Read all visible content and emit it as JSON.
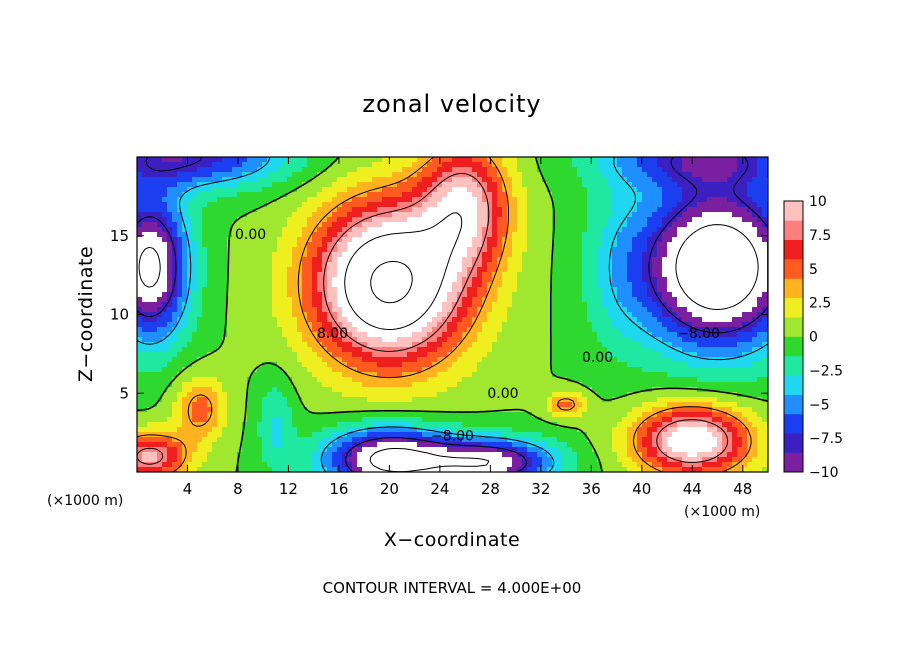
{
  "chart_data": {
    "type": "heatmap",
    "title": "zonal velocity",
    "xlabel": "X−coordinate",
    "ylabel": "Z−coordinate",
    "x_unit": "(×1000 m)",
    "y_unit": "(×1000 m)",
    "xlim": [
      0,
      50
    ],
    "ylim": [
      0,
      20
    ],
    "x_ticks": [
      4,
      8,
      12,
      16,
      20,
      24,
      28,
      32,
      36,
      40,
      44,
      48
    ],
    "x_tick_labels": [
      "4",
      "8",
      "12",
      "16",
      "20",
      "24",
      "28",
      "32",
      "36",
      "40",
      "44",
      "48"
    ],
    "y_ticks": [
      5,
      10,
      15
    ],
    "y_tick_labels": [
      "5",
      "10",
      "15"
    ],
    "colorbar": {
      "min": -10,
      "max": 10,
      "ticks": [
        10,
        7.5,
        5,
        2.5,
        0,
        -2.5,
        -5,
        -7.5,
        -10
      ],
      "tick_labels": [
        "10",
        "7.5",
        "5",
        "2.5",
        "0",
        "−2.5",
        "−5",
        "−7.5",
        "−10"
      ],
      "palette": [
        "#7a1fa0",
        "#3b1fc0",
        "#1b3ff0",
        "#1f8fff",
        "#1fd8f0",
        "#1fe8a0",
        "#2fd82f",
        "#9fe82f",
        "#efef1f",
        "#ffb41f",
        "#ff5a1f",
        "#ef1f1f",
        "#ff7f7f",
        "#ffc0c0"
      ],
      "saturated_color": "#ffffff"
    },
    "contour_interval": 4.0,
    "contour_labels": [
      {
        "text": "0.00",
        "x": 9.0,
        "z": 14.8
      },
      {
        "text": "8.00",
        "x": 15.5,
        "z": 8.5
      },
      {
        "text": "0.00",
        "x": 29.0,
        "z": 4.7
      },
      {
        "text": "0.00",
        "x": 36.5,
        "z": 7.0
      },
      {
        "text": "−8.00",
        "x": 44.5,
        "z": 8.5
      },
      {
        "text": "−8.00",
        "x": 25.0,
        "z": 2.0
      }
    ],
    "field": {
      "background": 0,
      "components": [
        {
          "x": 20,
          "z": 12,
          "sx": 6,
          "sz": 5,
          "a": 17
        },
        {
          "x": 26,
          "z": 17,
          "sx": 3.5,
          "sz": 4,
          "a": 9
        },
        {
          "x": 44,
          "z": 2,
          "sx": 4.5,
          "sz": 2.2,
          "a": 12
        },
        {
          "x": 34,
          "z": 4.3,
          "sx": 1.5,
          "sz": 0.8,
          "a": 5
        },
        {
          "x": 5,
          "z": 4,
          "sx": 2,
          "sz": 2,
          "a": 5
        },
        {
          "x": 1,
          "z": 1,
          "sx": 3,
          "sz": 1.5,
          "a": 9
        },
        {
          "x": 46,
          "z": 13,
          "sx": 6,
          "sz": 5,
          "a": -16
        },
        {
          "x": 1,
          "z": 13,
          "sx": 3,
          "sz": 4.5,
          "a": -13
        },
        {
          "x": 20,
          "z": 0.8,
          "sx": 5,
          "sz": 2,
          "a": -13
        },
        {
          "x": 28,
          "z": 0.6,
          "sx": 5,
          "sz": 1.5,
          "a": -11
        },
        {
          "x": 4,
          "z": 20,
          "sx": 8,
          "sz": 2,
          "a": -8
        },
        {
          "x": 45,
          "z": 20,
          "sx": 8,
          "sz": 2,
          "a": -7
        },
        {
          "x": 11,
          "z": 3,
          "sx": 1.5,
          "sz": 3,
          "a": -3
        },
        {
          "x": 38,
          "z": 13,
          "sx": 3,
          "sz": 6,
          "a": -2
        }
      ]
    }
  },
  "footer": {
    "contour_interval_text": "CONTOUR INTERVAL = 4.000E+00"
  }
}
